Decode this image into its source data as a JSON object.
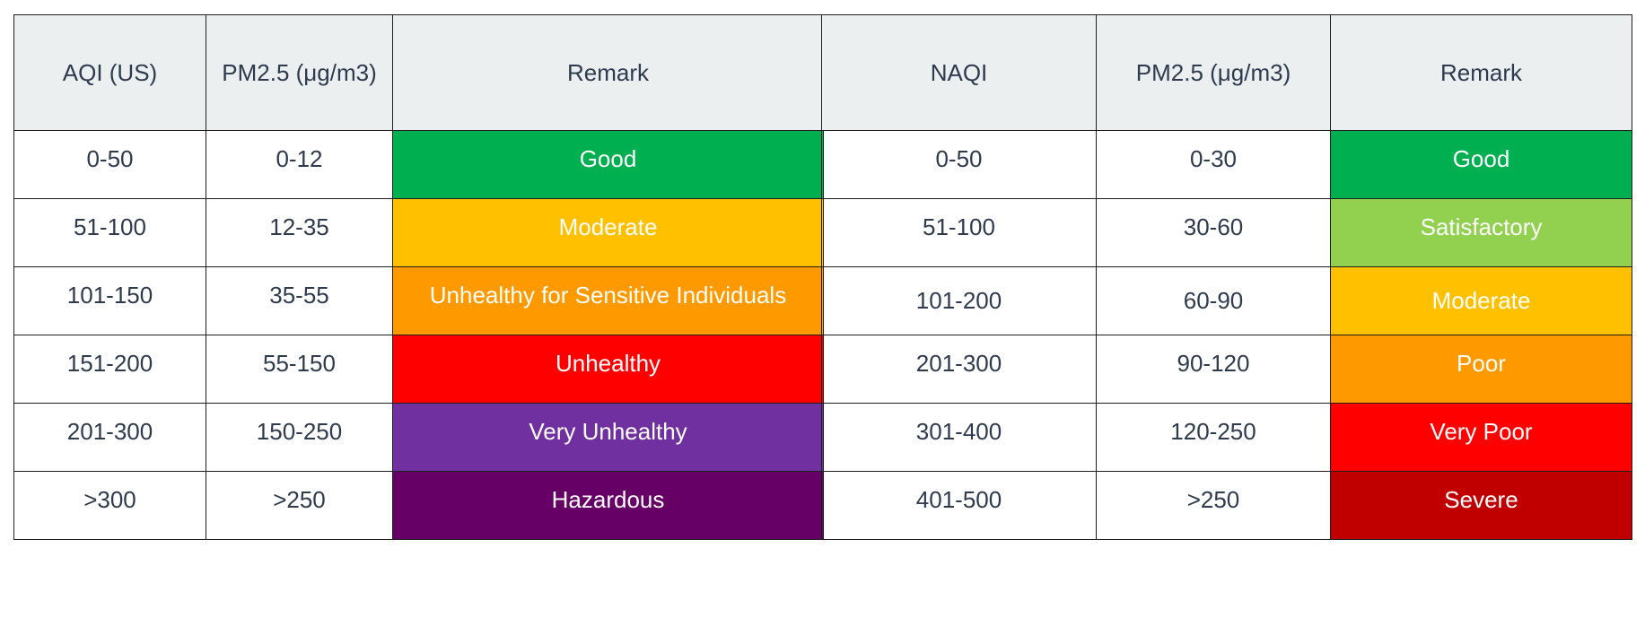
{
  "us_table": {
    "headers": [
      "AQI (US)",
      "PM2.5 (μg/m3)",
      "Remark"
    ],
    "rows": [
      {
        "aqi": "0-50",
        "pm": "0-12",
        "remark": "Good",
        "color": "#00b050"
      },
      {
        "aqi": "51-100",
        "pm": "12-35",
        "remark": "Moderate",
        "color": "#ffc000"
      },
      {
        "aqi": "101-150",
        "pm": "35-55",
        "remark": "Unhealthy for Sensitive Individuals",
        "color": "#ff9900"
      },
      {
        "aqi": "151-200",
        "pm": "55-150",
        "remark": "Unhealthy",
        "color": "#ff0000"
      },
      {
        "aqi": "201-300",
        "pm": "150-250",
        "remark": "Very Unhealthy",
        "color": "#7030a0"
      },
      {
        "aqi": ">300",
        "pm": ">250",
        "remark": "Hazardous",
        "color": "#660066"
      }
    ]
  },
  "naqi_table": {
    "headers": [
      "NAQI",
      "PM2.5 (μg/m3)",
      "Remark"
    ],
    "rows": [
      {
        "aqi": "0-50",
        "pm": "0-30",
        "remark": "Good",
        "color": "#00b050"
      },
      {
        "aqi": "51-100",
        "pm": "30-60",
        "remark": "Satisfactory",
        "color": "#92d050"
      },
      {
        "aqi": "101-200",
        "pm": "60-90",
        "remark": "Moderate",
        "color": "#ffc000"
      },
      {
        "aqi": "201-300",
        "pm": "90-120",
        "remark": "Poor",
        "color": "#ff9900"
      },
      {
        "aqi": "301-400",
        "pm": "120-250",
        "remark": "Very Poor",
        "color": "#ff0000"
      },
      {
        "aqi": "401-500",
        "pm": ">250",
        "remark": "Severe",
        "color": "#c00000"
      }
    ]
  }
}
